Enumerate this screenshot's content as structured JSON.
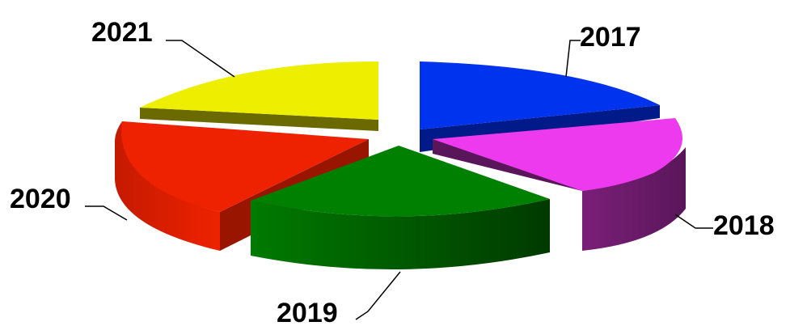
{
  "chart_data": {
    "type": "pie",
    "style": "3d-exploded",
    "categories": [
      "2017",
      "2018",
      "2019",
      "2020",
      "2021"
    ],
    "values": [
      20,
      20,
      20,
      20,
      20
    ],
    "colors": [
      "#0033ee",
      "#ee3aee",
      "#008000",
      "#ee2200",
      "#eeee00"
    ],
    "side_colors": [
      "#001a8a",
      "#6a1a68",
      "#005000",
      "#991500",
      "#6a6a00"
    ],
    "title": "",
    "legend": "none"
  }
}
